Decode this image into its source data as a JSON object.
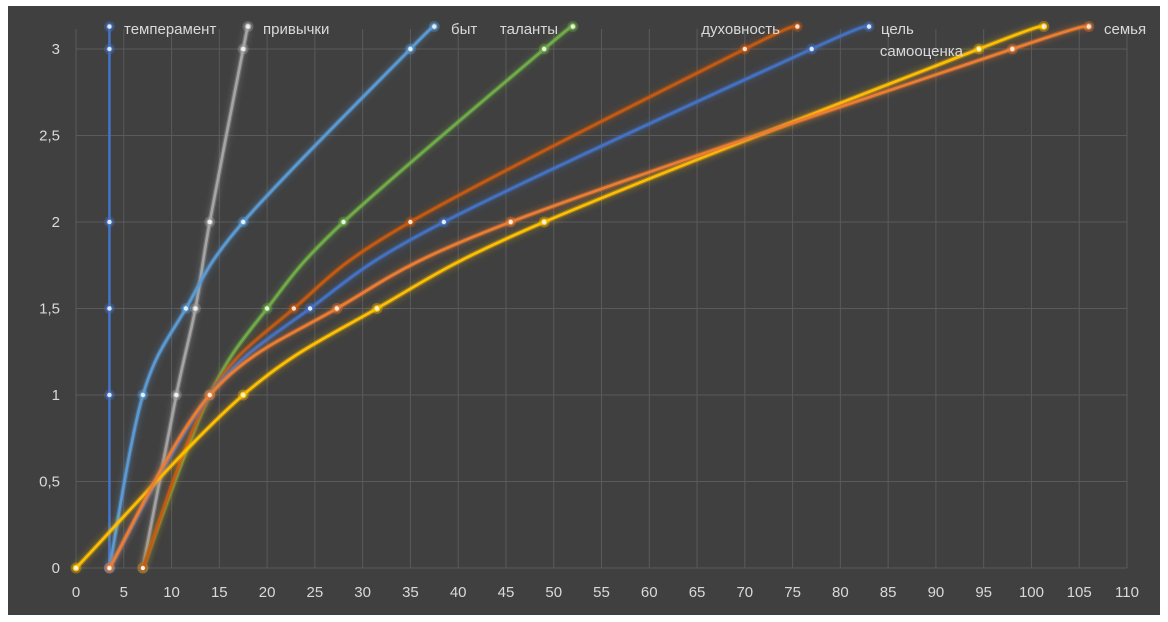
{
  "chart_data": {
    "type": "line",
    "title": "",
    "xlabel": "",
    "ylabel": "",
    "xlim": [
      0,
      110
    ],
    "ylim": [
      0,
      3
    ],
    "x_ticks": [
      0,
      5,
      10,
      15,
      20,
      25,
      30,
      35,
      40,
      45,
      50,
      55,
      60,
      65,
      70,
      75,
      80,
      85,
      90,
      95,
      100,
      105,
      110
    ],
    "y_ticks": [
      0,
      0.5,
      1,
      1.5,
      2,
      2.5,
      3
    ],
    "x_tick_labels": [
      "0",
      "5",
      "10",
      "15",
      "20",
      "25",
      "30",
      "35",
      "40",
      "45",
      "50",
      "55",
      "60",
      "65",
      "70",
      "75",
      "80",
      "85",
      "90",
      "95",
      "100",
      "105",
      "110"
    ],
    "y_tick_labels": [
      "0",
      "0,5",
      "1",
      "1,5",
      "2",
      "2,5",
      "3"
    ],
    "grid": true,
    "background": "#404040",
    "smooth": true,
    "legend": "labels at series end points",
    "series": [
      {
        "name": "темперамент",
        "color": "#4472c4",
        "points": [
          [
            3.5,
            0
          ],
          [
            3.5,
            1
          ],
          [
            3.5,
            1.5
          ],
          [
            3.5,
            2
          ],
          [
            3.5,
            3
          ],
          [
            3.5,
            3.13
          ]
        ]
      },
      {
        "name": "привычки",
        "color": "#a5a5a5",
        "points": [
          [
            7,
            0
          ],
          [
            10.5,
            1
          ],
          [
            12.5,
            1.5
          ],
          [
            14,
            2
          ],
          [
            17.5,
            3
          ],
          [
            18,
            3.13
          ]
        ]
      },
      {
        "name": "быт",
        "color": "#5b9bd5",
        "points": [
          [
            3.5,
            0
          ],
          [
            7,
            1
          ],
          [
            11.5,
            1.5
          ],
          [
            17.5,
            2
          ],
          [
            35,
            3
          ],
          [
            37.5,
            3.13
          ]
        ]
      },
      {
        "name": "таланты",
        "color": "#70ad47",
        "points": [
          [
            7,
            0
          ],
          [
            14,
            1
          ],
          [
            20,
            1.5
          ],
          [
            28,
            2
          ],
          [
            49,
            3
          ],
          [
            52,
            3.13
          ]
        ]
      },
      {
        "name": "духовность",
        "color": "#c55a11",
        "points": [
          [
            7,
            0
          ],
          [
            14,
            1
          ],
          [
            22.8,
            1.5
          ],
          [
            35,
            2
          ],
          [
            70,
            3
          ],
          [
            75.5,
            3.13
          ]
        ]
      },
      {
        "name": "цель",
        "color": "#4472c4",
        "points": [
          [
            3.5,
            0
          ],
          [
            14,
            1
          ],
          [
            24.5,
            1.5
          ],
          [
            38.5,
            2
          ],
          [
            77,
            3
          ],
          [
            83,
            3.13
          ]
        ]
      },
      {
        "name": "самооценка",
        "color": "#ffc000",
        "points": [
          [
            0,
            0
          ],
          [
            17.5,
            1
          ],
          [
            31.5,
            1.5
          ],
          [
            49,
            2
          ],
          [
            94.5,
            3
          ],
          [
            101.3,
            3.13
          ]
        ]
      },
      {
        "name": "семья",
        "color": "#ed7d31",
        "points": [
          [
            3.5,
            0
          ],
          [
            14,
            1
          ],
          [
            27.3,
            1.5
          ],
          [
            45.5,
            2
          ],
          [
            98,
            3
          ],
          [
            106,
            3.13
          ]
        ]
      }
    ]
  }
}
